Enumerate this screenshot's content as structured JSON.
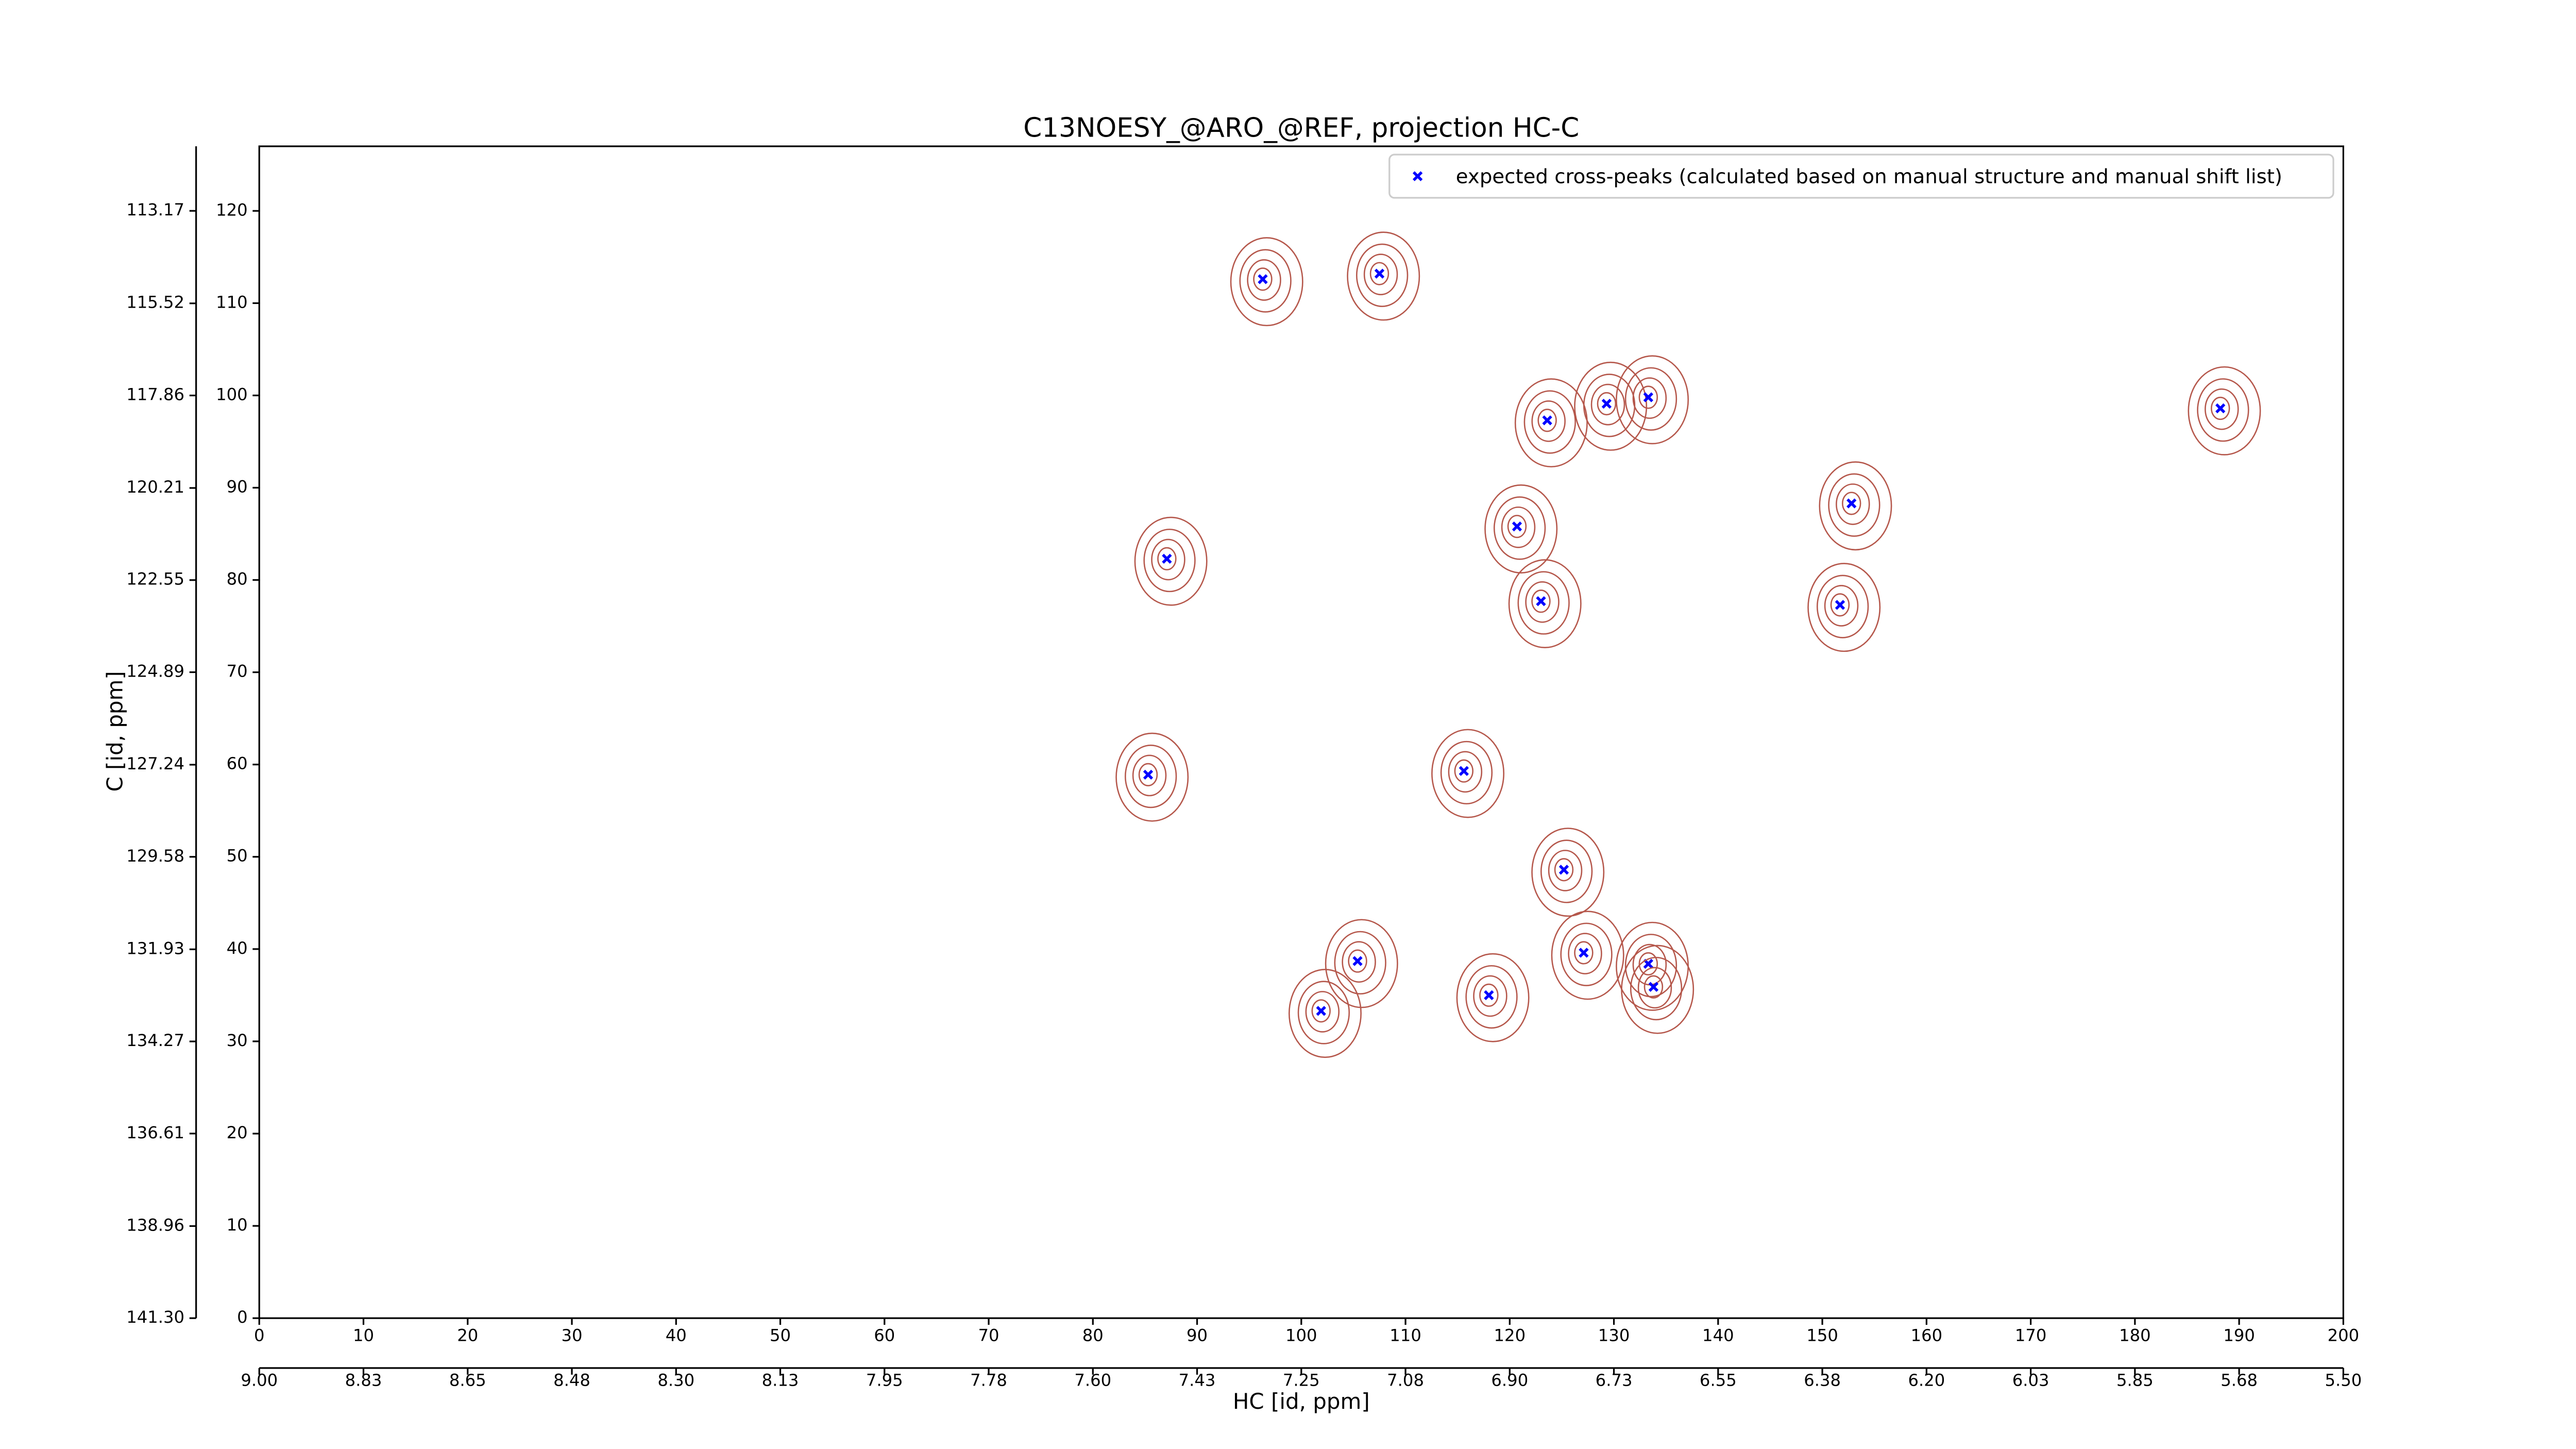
{
  "chart_data": {
    "type": "scatter",
    "title": "C13NOESY_@ARO_@REF, projection HC-C",
    "x_label": "HC [id, ppm]",
    "y_label": "C [id, ppm]",
    "xlim": [
      0,
      200
    ],
    "ylim": [
      0,
      127
    ],
    "xticks": [
      0,
      10,
      20,
      30,
      40,
      50,
      60,
      70,
      80,
      90,
      100,
      110,
      120,
      130,
      140,
      150,
      160,
      170,
      180,
      190,
      200
    ],
    "yticks": [
      0,
      10,
      20,
      30,
      40,
      50,
      60,
      70,
      80,
      90,
      100,
      110,
      120
    ],
    "x2lim": [
      9.0,
      5.5
    ],
    "x2ticks": [
      {
        "value": 9.0,
        "label": "9.00"
      },
      {
        "value": 8.825,
        "label": "8.83"
      },
      8.65,
      {
        "value": 8.475,
        "label": "8.48"
      },
      {
        "value": 8.3,
        "label": "8.30"
      },
      {
        "value": 8.125,
        "label": "8.13"
      },
      7.95,
      {
        "value": 7.775,
        "label": "7.78"
      },
      {
        "value": 7.6,
        "label": "7.60"
      },
      {
        "value": 7.425,
        "label": "7.43"
      },
      7.25,
      {
        "value": 7.075,
        "label": "7.08"
      },
      {
        "value": 6.9,
        "label": "6.90"
      },
      {
        "value": 6.725,
        "label": "6.73"
      },
      6.55,
      {
        "value": 6.375,
        "label": "6.38"
      },
      {
        "value": 6.2,
        "label": "6.20"
      },
      {
        "value": 6.025,
        "label": "6.03"
      },
      5.85,
      {
        "value": 5.675,
        "label": "5.68"
      },
      {
        "value": 5.5,
        "label": "5.50"
      }
    ],
    "y2lim": [
      141.3,
      111.53
    ],
    "y2ticks": [
      {
        "value": 141.3,
        "label": "141.30"
      },
      138.96,
      136.61,
      134.27,
      131.93,
      129.58,
      127.24,
      124.89,
      122.55,
      120.21,
      117.86,
      115.52,
      113.17
    ],
    "contour_color": "#b5574b",
    "legend_position": "upper right",
    "series": [
      {
        "name": "expected cross-peaks (calculated based on manual structure and manual shift list)",
        "color": "#0000ff",
        "x": [
          96.3,
          107.5,
          129.3,
          133.3,
          123.6,
          188.2,
          152.8,
          120.7,
          87.1,
          123.0,
          151.7,
          85.3,
          115.6,
          125.2,
          105.4,
          127.1,
          133.3,
          133.8,
          118.0,
          101.9
        ],
        "values": [
          112.6,
          113.2,
          99.1,
          99.8,
          97.3,
          98.6,
          88.3,
          85.8,
          82.3,
          77.7,
          77.3,
          58.9,
          59.3,
          48.6,
          38.7,
          39.6,
          38.4,
          35.9,
          35.0,
          33.3
        ]
      }
    ]
  }
}
